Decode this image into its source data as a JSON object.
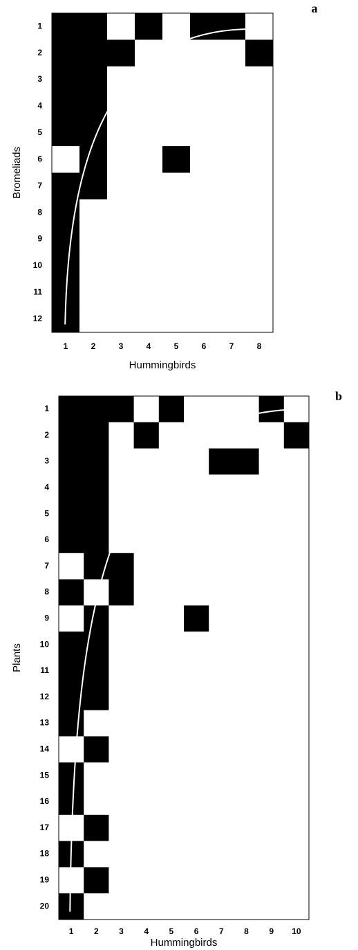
{
  "chart_data": [
    {
      "type": "matrix",
      "panel_label": "a",
      "y_label": "Bromeliads",
      "x_label": "Hummingbirds",
      "rows": [
        "1",
        "2",
        "3",
        "4",
        "5",
        "6",
        "7",
        "8",
        "9",
        "10",
        "11",
        "12"
      ],
      "columns": [
        "1",
        "2",
        "3",
        "4",
        "5",
        "6",
        "7",
        "8"
      ],
      "matrix": [
        [
          1,
          1,
          0,
          1,
          0,
          1,
          1,
          0
        ],
        [
          1,
          1,
          1,
          0,
          0,
          0,
          0,
          1
        ],
        [
          1,
          1,
          0,
          0,
          0,
          0,
          0,
          0
        ],
        [
          1,
          1,
          0,
          0,
          0,
          0,
          0,
          0
        ],
        [
          1,
          1,
          0,
          0,
          0,
          0,
          0,
          0
        ],
        [
          0,
          1,
          0,
          0,
          1,
          0,
          0,
          0
        ],
        [
          1,
          1,
          0,
          0,
          0,
          0,
          0,
          0
        ],
        [
          1,
          0,
          0,
          0,
          0,
          0,
          0,
          0
        ],
        [
          1,
          0,
          0,
          0,
          0,
          0,
          0,
          0
        ],
        [
          1,
          0,
          0,
          0,
          0,
          0,
          0,
          0
        ],
        [
          1,
          0,
          0,
          0,
          0,
          0,
          0,
          0
        ],
        [
          1,
          0,
          0,
          0,
          0,
          0,
          0,
          0
        ]
      ],
      "present_color": "#000000",
      "absent_color": "#ffffff",
      "isocline_color": "#ffffff"
    },
    {
      "type": "matrix",
      "panel_label": "b",
      "y_label": "Plants",
      "x_label": "Hummingbirds",
      "rows": [
        "1",
        "2",
        "3",
        "4",
        "5",
        "6",
        "7",
        "8",
        "9",
        "10",
        "11",
        "12",
        "13",
        "14",
        "15",
        "16",
        "17",
        "18",
        "19",
        "20"
      ],
      "columns": [
        "1",
        "2",
        "3",
        "4",
        "5",
        "6",
        "7",
        "8",
        "9",
        "10"
      ],
      "matrix": [
        [
          1,
          1,
          1,
          0,
          1,
          0,
          0,
          0,
          1,
          0
        ],
        [
          1,
          1,
          0,
          1,
          0,
          0,
          0,
          0,
          0,
          1
        ],
        [
          1,
          1,
          0,
          0,
          0,
          0,
          1,
          1,
          0,
          0
        ],
        [
          1,
          1,
          0,
          0,
          0,
          0,
          0,
          0,
          0,
          0
        ],
        [
          1,
          1,
          0,
          0,
          0,
          0,
          0,
          0,
          0,
          0
        ],
        [
          1,
          1,
          0,
          0,
          0,
          0,
          0,
          0,
          0,
          0
        ],
        [
          0,
          1,
          1,
          0,
          0,
          0,
          0,
          0,
          0,
          0
        ],
        [
          1,
          0,
          1,
          0,
          0,
          0,
          0,
          0,
          0,
          0
        ],
        [
          0,
          1,
          0,
          0,
          0,
          1,
          0,
          0,
          0,
          0
        ],
        [
          1,
          1,
          0,
          0,
          0,
          0,
          0,
          0,
          0,
          0
        ],
        [
          1,
          1,
          0,
          0,
          0,
          0,
          0,
          0,
          0,
          0
        ],
        [
          1,
          1,
          0,
          0,
          0,
          0,
          0,
          0,
          0,
          0
        ],
        [
          1,
          0,
          0,
          0,
          0,
          0,
          0,
          0,
          0,
          0
        ],
        [
          0,
          1,
          0,
          0,
          0,
          0,
          0,
          0,
          0,
          0
        ],
        [
          1,
          0,
          0,
          0,
          0,
          0,
          0,
          0,
          0,
          0
        ],
        [
          1,
          0,
          0,
          0,
          0,
          0,
          0,
          0,
          0,
          0
        ],
        [
          0,
          1,
          0,
          0,
          0,
          0,
          0,
          0,
          0,
          0
        ],
        [
          1,
          0,
          0,
          0,
          0,
          0,
          0,
          0,
          0,
          0
        ],
        [
          0,
          1,
          0,
          0,
          0,
          0,
          0,
          0,
          0,
          0
        ],
        [
          1,
          0,
          0,
          0,
          0,
          0,
          0,
          0,
          0,
          0
        ]
      ],
      "present_color": "#000000",
      "absent_color": "#ffffff",
      "isocline_color": "#ffffff"
    }
  ]
}
